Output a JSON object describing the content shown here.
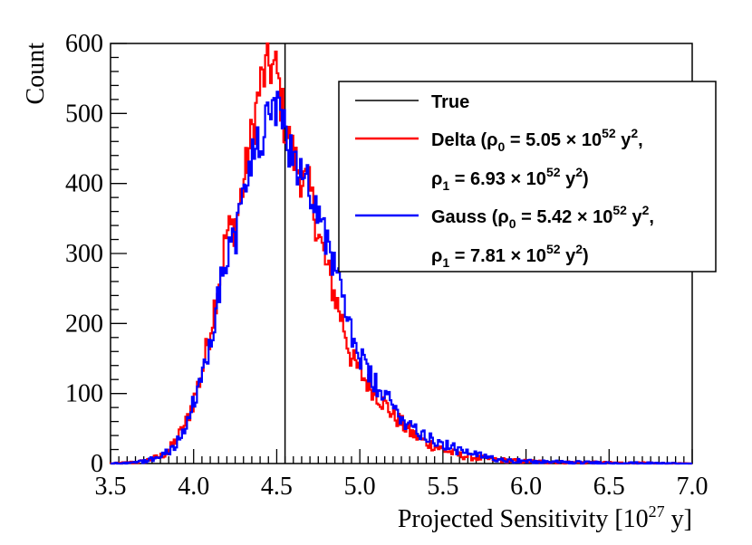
{
  "chart_data": {
    "type": "line",
    "style": "step-histogram",
    "title": "",
    "xlabel": "Projected Sensitivity [10",
    "xlabel_exp": "27",
    "xlabel_unit": " y]",
    "ylabel": "Count",
    "xlim": [
      3.5,
      7.0
    ],
    "ylim": [
      0,
      600
    ],
    "xticks": [
      "3.5",
      "4.0",
      "4.5",
      "5.0",
      "5.5",
      "6.0",
      "6.5",
      "7.0"
    ],
    "yticks": [
      "0",
      "100",
      "200",
      "300",
      "400",
      "500",
      "600"
    ],
    "true_value": 4.55,
    "x": [
      3.5,
      3.6,
      3.7,
      3.8,
      3.85,
      3.9,
      3.95,
      4.0,
      4.05,
      4.1,
      4.15,
      4.2,
      4.25,
      4.3,
      4.35,
      4.4,
      4.45,
      4.5,
      4.55,
      4.6,
      4.65,
      4.7,
      4.75,
      4.8,
      4.85,
      4.9,
      4.95,
      5.0,
      5.05,
      5.1,
      5.2,
      5.3,
      5.4,
      5.5,
      5.6,
      5.7,
      5.8,
      5.9,
      6.0,
      6.2,
      6.5,
      7.0
    ],
    "series": [
      {
        "name": "True",
        "color": "#000000",
        "vline": 4.55
      },
      {
        "name": "Delta",
        "color": "#ff0000",
        "values": [
          0,
          1,
          3,
          10,
          18,
          35,
          55,
          90,
          130,
          190,
          260,
          330,
          340,
          400,
          470,
          540,
          570,
          560,
          480,
          440,
          410,
          390,
          330,
          280,
          240,
          200,
          150,
          130,
          115,
          100,
          70,
          45,
          30,
          20,
          12,
          8,
          6,
          4,
          3,
          2,
          1,
          0
        ]
      },
      {
        "name": "Gauss",
        "color": "#0000ff",
        "values": [
          0,
          1,
          3,
          10,
          18,
          30,
          50,
          85,
          120,
          180,
          240,
          300,
          320,
          380,
          440,
          460,
          490,
          500,
          470,
          440,
          420,
          400,
          360,
          320,
          280,
          230,
          190,
          150,
          130,
          110,
          80,
          55,
          40,
          28,
          18,
          12,
          8,
          5,
          3,
          2,
          1,
          0
        ]
      }
    ],
    "legend": {
      "position": "top-right",
      "entries": [
        {
          "key": "true",
          "name": "True"
        },
        {
          "key": "delta",
          "name": "Delta",
          "rho0_label": "(ρ",
          "rho0_sub": "0",
          "rho0_value": " = 5.05 × 10",
          "rho0_exp": "52",
          "unit": " y",
          "unit_exp": "2",
          "sep": ",",
          "rho1_label": "ρ",
          "rho1_sub": "1",
          "rho1_value": " = 6.93 × 10",
          "rho1_exp": "52",
          "close": ")"
        },
        {
          "key": "gauss",
          "name": "Gauss",
          "rho0_label": "(ρ",
          "rho0_sub": "0",
          "rho0_value": " = 5.42 × 10",
          "rho0_exp": "52",
          "unit": " y",
          "unit_exp": "2",
          "sep": ",",
          "rho1_label": "ρ",
          "rho1_sub": "1",
          "rho1_value": " = 7.81 × 10",
          "rho1_exp": "52",
          "close": ")"
        }
      ]
    }
  }
}
